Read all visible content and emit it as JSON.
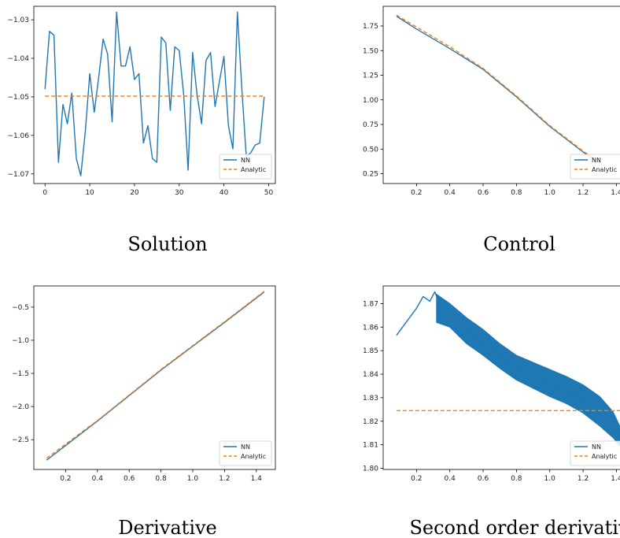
{
  "colors": {
    "nn": "#1f77b4",
    "analytic": "#ff7f0e",
    "axis": "#000000",
    "legend_border": "#cccccc"
  },
  "chart_data": [
    {
      "id": "solution",
      "type": "line",
      "caption": "Solution",
      "xlim": [
        -2.5,
        51.5
      ],
      "ylim": [
        -1.0725,
        -1.0265
      ],
      "x_ticks": [
        0,
        10,
        20,
        30,
        40,
        50
      ],
      "x_tick_labels": [
        "0",
        "10",
        "20",
        "30",
        "40",
        "50"
      ],
      "y_ticks": [
        -1.07,
        -1.06,
        -1.05,
        -1.04,
        -1.03
      ],
      "y_tick_labels": [
        "−1.07",
        "−1.06",
        "−1.05",
        "−1.04",
        "−1.03"
      ],
      "legend": [
        "NN",
        "Analytic"
      ],
      "series": [
        {
          "name": "NN",
          "style": "solid",
          "x": [
            0,
            1,
            2,
            3,
            4,
            5,
            6,
            7,
            8,
            9,
            10,
            11,
            12,
            13,
            14,
            15,
            16,
            17,
            18,
            19,
            20,
            21,
            22,
            23,
            24,
            25,
            26,
            27,
            28,
            29,
            30,
            31,
            32,
            33,
            34,
            35,
            36,
            37,
            38,
            39,
            40,
            41,
            42,
            43,
            44,
            45,
            46,
            47,
            48,
            49
          ],
          "y": [
            -1.048,
            -1.033,
            -1.034,
            -1.067,
            -1.052,
            -1.057,
            -1.049,
            -1.066,
            -1.0705,
            -1.059,
            -1.044,
            -1.054,
            -1.045,
            -1.035,
            -1.039,
            -1.0565,
            -1.028,
            -1.042,
            -1.042,
            -1.037,
            -1.0455,
            -1.044,
            -1.062,
            -1.0575,
            -1.066,
            -1.067,
            -1.0345,
            -1.036,
            -1.0535,
            -1.037,
            -1.038,
            -1.0495,
            -1.069,
            -1.0385,
            -1.0495,
            -1.057,
            -1.0405,
            -1.0385,
            -1.0525,
            -1.046,
            -1.0395,
            -1.0575,
            -1.0635,
            -1.028,
            -1.048,
            -1.0655,
            -1.0645,
            -1.0625,
            -1.062,
            -1.05
          ]
        },
        {
          "name": "Analytic",
          "style": "dashed",
          "x": [
            0,
            49
          ],
          "y": [
            -1.0498,
            -1.0498
          ]
        }
      ]
    },
    {
      "id": "control",
      "type": "line",
      "caption": "Control",
      "xlim": [
        0.0,
        1.45
      ],
      "ylim": [
        0.15,
        1.95
      ],
      "x_ticks": [
        0.2,
        0.4,
        0.6,
        0.8,
        1.0,
        1.2,
        1.4
      ],
      "x_tick_labels": [
        "0.2",
        "0.4",
        "0.6",
        "0.8",
        "1.0",
        "1.2",
        "1.4"
      ],
      "y_ticks": [
        0.25,
        0.5,
        0.75,
        1.0,
        1.25,
        1.5,
        1.75
      ],
      "y_tick_labels": [
        "0.25",
        "0.50",
        "0.75",
        "1.00",
        "1.25",
        "1.50",
        "1.75"
      ],
      "legend": [
        "NN",
        "Analytic"
      ],
      "series": [
        {
          "name": "NN",
          "style": "solid",
          "x": [
            0.08,
            0.2,
            0.4,
            0.6,
            0.8,
            1.0,
            1.2,
            1.3
          ],
          "y": [
            1.85,
            1.72,
            1.52,
            1.31,
            1.03,
            0.73,
            0.47,
            0.36
          ]
        },
        {
          "name": "Analytic",
          "style": "dashed",
          "x": [
            0.08,
            0.2,
            0.4,
            0.6,
            0.8,
            1.0,
            1.2,
            1.3
          ],
          "y": [
            1.86,
            1.74,
            1.54,
            1.32,
            1.04,
            0.74,
            0.48,
            0.37
          ]
        }
      ]
    },
    {
      "id": "derivative",
      "type": "line",
      "caption": "Derivative",
      "xlim": [
        0.0,
        1.52
      ],
      "ylim": [
        -2.95,
        -0.18
      ],
      "x_ticks": [
        0.2,
        0.4,
        0.6,
        0.8,
        1.0,
        1.2,
        1.4
      ],
      "x_tick_labels": [
        "0.2",
        "0.4",
        "0.6",
        "0.8",
        "1.0",
        "1.2",
        "1.4"
      ],
      "y_ticks": [
        -2.5,
        -2.0,
        -1.5,
        -1.0,
        -0.5
      ],
      "y_tick_labels": [
        "−2.5",
        "−2.0",
        "−1.5",
        "−1.0",
        "−0.5"
      ],
      "legend": [
        "NN",
        "Analytic"
      ],
      "series": [
        {
          "name": "NN",
          "style": "solid",
          "x": [
            0.08,
            0.4,
            0.8,
            1.2,
            1.45
          ],
          "y": [
            -2.81,
            -2.22,
            -1.45,
            -0.73,
            -0.27
          ]
        },
        {
          "name": "Analytic",
          "style": "dashed",
          "x": [
            0.08,
            0.4,
            0.8,
            1.2,
            1.45
          ],
          "y": [
            -2.78,
            -2.21,
            -1.44,
            -0.72,
            -0.26
          ]
        }
      ]
    },
    {
      "id": "second-order-derivative",
      "type": "line",
      "caption": "Second order derivativ",
      "xlim": [
        0.0,
        1.45
      ],
      "ylim": [
        1.7995,
        1.8775
      ],
      "x_ticks": [
        0.2,
        0.4,
        0.6,
        0.8,
        1.0,
        1.2,
        1.4
      ],
      "x_tick_labels": [
        "0.2",
        "0.4",
        "0.6",
        "0.8",
        "1.0",
        "1.2",
        "1.4"
      ],
      "y_ticks": [
        1.8,
        1.81,
        1.82,
        1.83,
        1.84,
        1.85,
        1.86,
        1.87
      ],
      "y_tick_labels": [
        "1.80",
        "1.81",
        "1.82",
        "1.83",
        "1.84",
        "1.85",
        "1.86",
        "1.87"
      ],
      "legend": [
        "NN",
        "Analytic"
      ],
      "series": [
        {
          "name": "NN",
          "style": "solid",
          "x": [
            0.08,
            0.2,
            0.24,
            0.28,
            0.31,
            0.35,
            0.4,
            0.5,
            0.6,
            0.7,
            0.8,
            0.9,
            1.0,
            1.1,
            1.2,
            1.3,
            1.38,
            1.41,
            1.43
          ],
          "y": [
            1.8565,
            1.868,
            1.873,
            1.871,
            1.875,
            1.868,
            1.866,
            1.859,
            1.853,
            1.848,
            1.843,
            1.8395,
            1.836,
            1.833,
            1.8295,
            1.8235,
            1.8165,
            1.8135,
            1.8105
          ],
          "band_x": [
            0.32,
            0.4,
            0.5,
            0.6,
            0.7,
            0.8,
            0.9,
            1.0,
            1.1,
            1.2,
            1.3,
            1.38,
            1.42
          ],
          "band_high": [
            1.874,
            1.87,
            1.864,
            1.859,
            1.853,
            1.848,
            1.845,
            1.842,
            1.839,
            1.8355,
            1.8305,
            1.824,
            1.818
          ],
          "band_low": [
            1.862,
            1.86,
            1.853,
            1.848,
            1.8425,
            1.8375,
            1.834,
            1.8305,
            1.8275,
            1.8235,
            1.818,
            1.813,
            1.8095
          ]
        },
        {
          "name": "Analytic",
          "style": "dashed",
          "x": [
            0.08,
            1.45
          ],
          "y": [
            1.8245,
            1.8245
          ]
        }
      ]
    }
  ]
}
